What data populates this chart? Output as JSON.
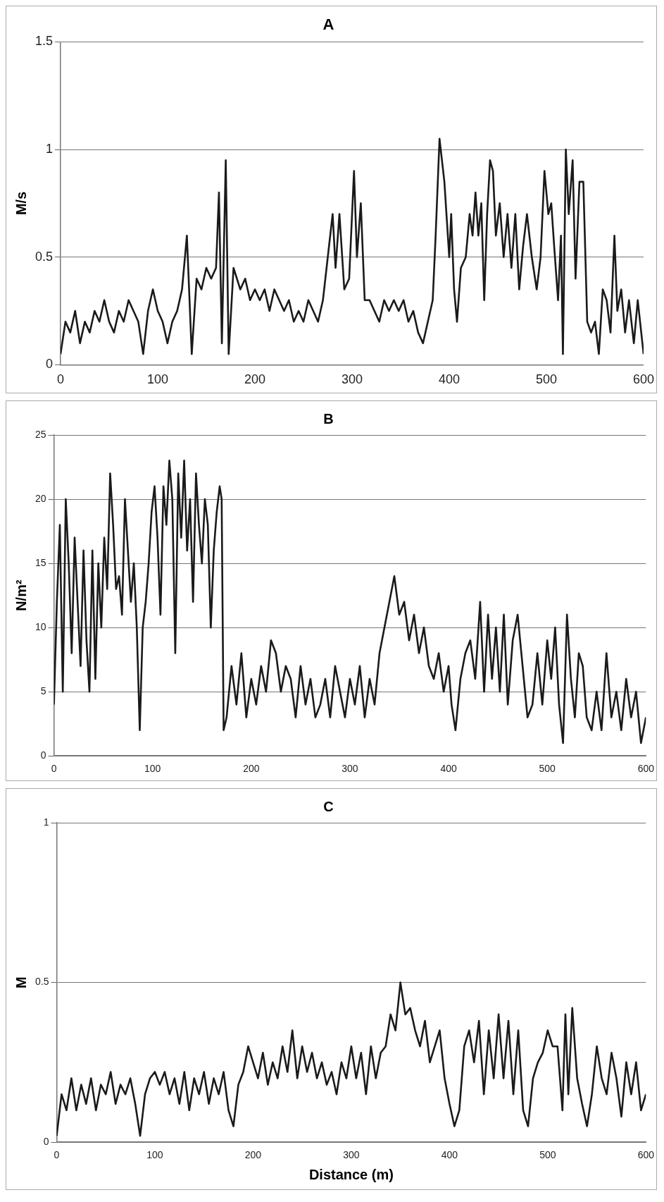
{
  "chart_data": [
    {
      "type": "line",
      "title": "A",
      "ylabel": "M/s",
      "color": "#1a1a1a",
      "xlim": [
        0,
        600
      ],
      "ylim": [
        0,
        1.5
      ],
      "xticks": [
        0,
        100,
        200,
        300,
        400,
        500,
        600
      ],
      "yticks": [
        0,
        0.5,
        1,
        1.5
      ],
      "grid": "y",
      "x": [
        0,
        5,
        10,
        15,
        20,
        25,
        30,
        35,
        40,
        45,
        50,
        55,
        60,
        65,
        70,
        75,
        80,
        85,
        90,
        95,
        100,
        105,
        110,
        115,
        120,
        125,
        130,
        135,
        140,
        145,
        150,
        155,
        160,
        163,
        166,
        170,
        173,
        178,
        185,
        190,
        195,
        200,
        205,
        210,
        215,
        220,
        225,
        230,
        235,
        240,
        245,
        250,
        255,
        260,
        265,
        270,
        275,
        280,
        283,
        287,
        292,
        297,
        302,
        305,
        309,
        313,
        318,
        323,
        328,
        333,
        338,
        343,
        348,
        353,
        358,
        363,
        368,
        373,
        378,
        383,
        386,
        390,
        395,
        400,
        402,
        405,
        408,
        412,
        417,
        421,
        424,
        427,
        430,
        433,
        436,
        439,
        442,
        445,
        448,
        452,
        456,
        460,
        464,
        468,
        472,
        476,
        480,
        485,
        490,
        494,
        498,
        502,
        505,
        508,
        512,
        515,
        517,
        520,
        523,
        527,
        530,
        534,
        538,
        542,
        546,
        550,
        554,
        558,
        562,
        566,
        570,
        573,
        577,
        581,
        585,
        590,
        594,
        600
      ],
      "values": [
        0.05,
        0.2,
        0.15,
        0.25,
        0.1,
        0.2,
        0.15,
        0.25,
        0.2,
        0.3,
        0.2,
        0.15,
        0.25,
        0.2,
        0.3,
        0.25,
        0.2,
        0.05,
        0.25,
        0.35,
        0.25,
        0.2,
        0.1,
        0.2,
        0.25,
        0.35,
        0.6,
        0.05,
        0.4,
        0.35,
        0.45,
        0.4,
        0.45,
        0.8,
        0.1,
        0.95,
        0.05,
        0.45,
        0.35,
        0.4,
        0.3,
        0.35,
        0.3,
        0.35,
        0.25,
        0.35,
        0.3,
        0.25,
        0.3,
        0.2,
        0.25,
        0.2,
        0.3,
        0.25,
        0.2,
        0.3,
        0.5,
        0.7,
        0.45,
        0.7,
        0.35,
        0.4,
        0.9,
        0.5,
        0.75,
        0.3,
        0.3,
        0.25,
        0.2,
        0.3,
        0.25,
        0.3,
        0.25,
        0.3,
        0.2,
        0.25,
        0.15,
        0.1,
        0.2,
        0.3,
        0.6,
        1.05,
        0.85,
        0.5,
        0.7,
        0.35,
        0.2,
        0.45,
        0.5,
        0.7,
        0.6,
        0.8,
        0.6,
        0.75,
        0.3,
        0.7,
        0.95,
        0.9,
        0.6,
        0.75,
        0.5,
        0.7,
        0.45,
        0.7,
        0.35,
        0.55,
        0.7,
        0.5,
        0.35,
        0.5,
        0.9,
        0.7,
        0.75,
        0.55,
        0.3,
        0.6,
        0.05,
        1.0,
        0.7,
        0.95,
        0.4,
        0.85,
        0.85,
        0.2,
        0.15,
        0.2,
        0.05,
        0.35,
        0.3,
        0.15,
        0.6,
        0.25,
        0.35,
        0.15,
        0.3,
        0.1,
        0.3,
        0.05
      ]
    },
    {
      "type": "line",
      "title": "B",
      "ylabel": "N/m²",
      "color": "#1a1a1a",
      "xlim": [
        0,
        600
      ],
      "ylim": [
        0,
        25
      ],
      "xticks": [
        0,
        100,
        200,
        300,
        400,
        500,
        600
      ],
      "yticks": [
        0,
        5,
        10,
        15,
        20,
        25
      ],
      "grid": "y",
      "x": [
        0,
        3,
        6,
        9,
        12,
        15,
        18,
        21,
        24,
        27,
        30,
        33,
        36,
        39,
        42,
        45,
        48,
        51,
        54,
        57,
        60,
        63,
        66,
        69,
        72,
        75,
        78,
        81,
        84,
        87,
        90,
        93,
        96,
        99,
        102,
        105,
        108,
        111,
        114,
        117,
        120,
        123,
        126,
        129,
        132,
        135,
        138,
        141,
        144,
        147,
        150,
        153,
        156,
        159,
        162,
        165,
        168,
        170,
        172,
        175,
        180,
        185,
        190,
        195,
        200,
        205,
        210,
        215,
        220,
        225,
        230,
        235,
        240,
        245,
        250,
        255,
        260,
        265,
        270,
        275,
        280,
        285,
        290,
        295,
        300,
        305,
        310,
        315,
        320,
        325,
        330,
        335,
        340,
        345,
        350,
        355,
        360,
        365,
        370,
        375,
        380,
        385,
        390,
        395,
        400,
        403,
        407,
        412,
        417,
        422,
        427,
        432,
        436,
        440,
        444,
        448,
        452,
        456,
        460,
        465,
        470,
        475,
        480,
        485,
        490,
        495,
        500,
        504,
        508,
        512,
        516,
        520,
        524,
        528,
        532,
        536,
        540,
        545,
        550,
        555,
        560,
        565,
        570,
        575,
        580,
        585,
        590,
        595,
        600
      ],
      "values": [
        4,
        12,
        18,
        5,
        20,
        15,
        8,
        17,
        12,
        7,
        16,
        9,
        5,
        16,
        6,
        15,
        10,
        17,
        13,
        22,
        18,
        13,
        14,
        11,
        20,
        16,
        12,
        15,
        10,
        2,
        10,
        12,
        15,
        19,
        21,
        17,
        11,
        21,
        18,
        23,
        20,
        8,
        22,
        17,
        23,
        16,
        20,
        12,
        22,
        18,
        15,
        20,
        18,
        10,
        16,
        19,
        21,
        20,
        2,
        3,
        7,
        4,
        8,
        3,
        6,
        4,
        7,
        5,
        9,
        8,
        5,
        7,
        6,
        3,
        7,
        4,
        6,
        3,
        4,
        6,
        3,
        7,
        5,
        3,
        6,
        4,
        7,
        3,
        6,
        4,
        8,
        10,
        12,
        14,
        11,
        12,
        9,
        11,
        8,
        10,
        7,
        6,
        8,
        5,
        7,
        4,
        2,
        6,
        8,
        9,
        6,
        12,
        5,
        11,
        6,
        10,
        5,
        11,
        4,
        9,
        11,
        7,
        3,
        4,
        8,
        4,
        9,
        6,
        10,
        4,
        1,
        11,
        6,
        3,
        8,
        7,
        3,
        2,
        5,
        2,
        8,
        3,
        5,
        2,
        6,
        3,
        5,
        1,
        3
      ]
    },
    {
      "type": "line",
      "title": "C",
      "ylabel": "M",
      "xlabel": "Distance (m)",
      "color": "#1a1a1a",
      "xlim": [
        0,
        600
      ],
      "ylim": [
        0,
        1
      ],
      "xticks": [
        0,
        100,
        200,
        300,
        400,
        500,
        600
      ],
      "yticks": [
        0,
        0.5,
        1
      ],
      "grid": "y",
      "x": [
        0,
        5,
        10,
        15,
        20,
        25,
        30,
        35,
        40,
        45,
        50,
        55,
        60,
        65,
        70,
        75,
        80,
        85,
        90,
        95,
        100,
        105,
        110,
        115,
        120,
        125,
        130,
        135,
        140,
        145,
        150,
        155,
        160,
        165,
        170,
        175,
        180,
        185,
        190,
        195,
        200,
        205,
        210,
        215,
        220,
        225,
        230,
        235,
        240,
        245,
        250,
        255,
        260,
        265,
        270,
        275,
        280,
        285,
        290,
        295,
        300,
        305,
        310,
        315,
        320,
        325,
        330,
        335,
        340,
        345,
        350,
        355,
        360,
        365,
        370,
        375,
        380,
        385,
        390,
        395,
        400,
        405,
        410,
        415,
        420,
        425,
        430,
        435,
        440,
        445,
        450,
        455,
        460,
        465,
        470,
        475,
        480,
        485,
        490,
        495,
        500,
        505,
        510,
        515,
        518,
        521,
        525,
        530,
        535,
        540,
        545,
        550,
        555,
        560,
        565,
        570,
        575,
        580,
        585,
        590,
        595,
        600
      ],
      "values": [
        0.02,
        0.15,
        0.1,
        0.2,
        0.1,
        0.18,
        0.12,
        0.2,
        0.1,
        0.18,
        0.15,
        0.22,
        0.12,
        0.18,
        0.15,
        0.2,
        0.12,
        0.02,
        0.15,
        0.2,
        0.22,
        0.18,
        0.22,
        0.15,
        0.2,
        0.12,
        0.22,
        0.1,
        0.2,
        0.15,
        0.22,
        0.12,
        0.2,
        0.15,
        0.22,
        0.1,
        0.05,
        0.18,
        0.22,
        0.3,
        0.25,
        0.2,
        0.28,
        0.18,
        0.25,
        0.2,
        0.3,
        0.22,
        0.35,
        0.2,
        0.3,
        0.22,
        0.28,
        0.2,
        0.25,
        0.18,
        0.22,
        0.15,
        0.25,
        0.2,
        0.3,
        0.2,
        0.28,
        0.15,
        0.3,
        0.2,
        0.28,
        0.3,
        0.4,
        0.35,
        0.5,
        0.4,
        0.42,
        0.35,
        0.3,
        0.38,
        0.25,
        0.3,
        0.35,
        0.2,
        0.12,
        0.05,
        0.1,
        0.3,
        0.35,
        0.25,
        0.38,
        0.15,
        0.35,
        0.2,
        0.4,
        0.2,
        0.38,
        0.15,
        0.35,
        0.1,
        0.05,
        0.2,
        0.25,
        0.28,
        0.35,
        0.3,
        0.3,
        0.1,
        0.4,
        0.15,
        0.42,
        0.2,
        0.12,
        0.05,
        0.15,
        0.3,
        0.2,
        0.15,
        0.28,
        0.2,
        0.08,
        0.25,
        0.15,
        0.25,
        0.1,
        0.15
      ]
    }
  ]
}
